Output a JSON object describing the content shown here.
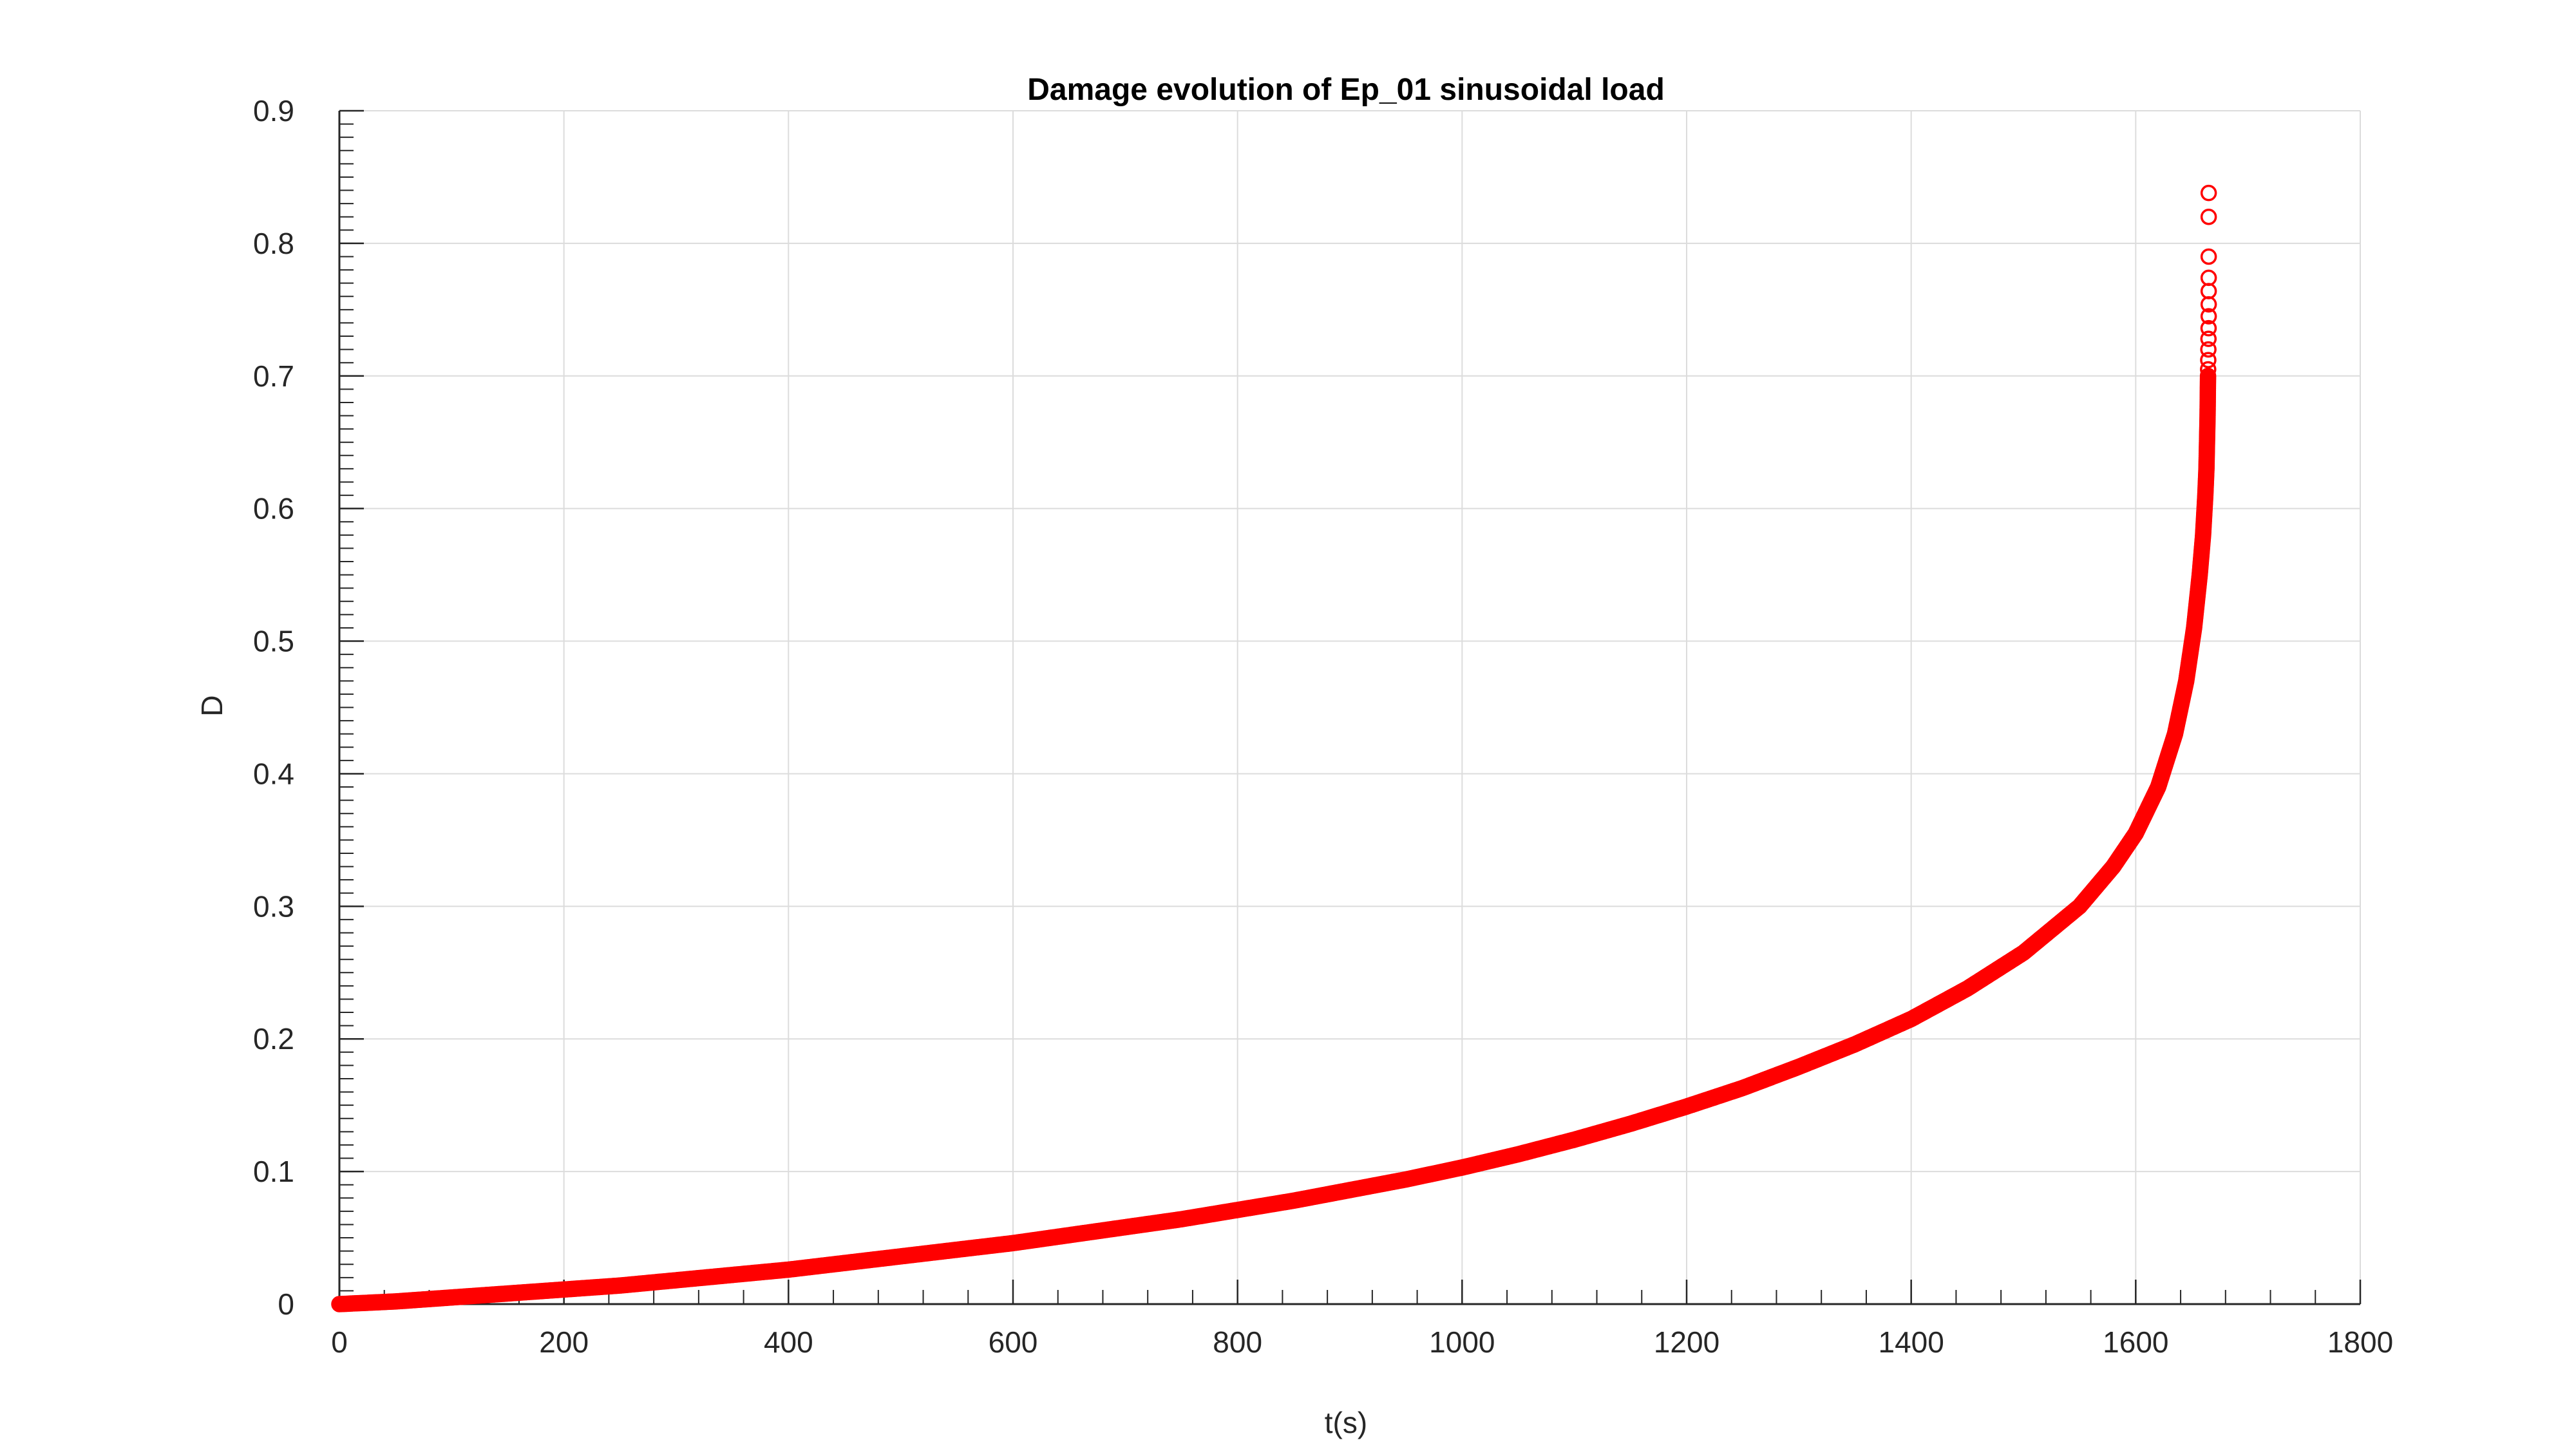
{
  "chart_data": {
    "type": "scatter",
    "title": "Damage evolution of Ep_01 sinusoidal load",
    "xlabel": "t(s)",
    "ylabel": "D",
    "xlim": [
      0,
      1800
    ],
    "ylim": [
      0,
      0.9
    ],
    "xticks": [
      0,
      200,
      400,
      600,
      800,
      1000,
      1200,
      1400,
      1600,
      1800
    ],
    "yticks": [
      0,
      0.1,
      0.2,
      0.3,
      0.4,
      0.5,
      0.6,
      0.7,
      0.8,
      0.9
    ],
    "xtick_labels": [
      "0",
      "200",
      "400",
      "600",
      "800",
      "1000",
      "1200",
      "1400",
      "1600",
      "1800"
    ],
    "ytick_labels": [
      "0",
      "0.1",
      "0.2",
      "0.3",
      "0.4",
      "0.5",
      "0.6",
      "0.7",
      "0.8",
      "0.9"
    ],
    "grid": true,
    "marker": "circle-open",
    "color": "#ff0000",
    "series": [
      {
        "x": [
          0,
          50,
          100,
          150,
          200,
          250,
          300,
          350,
          400,
          450,
          500,
          550,
          600,
          650,
          700,
          750,
          800,
          850,
          900,
          950,
          1000,
          1050,
          1100,
          1150,
          1200,
          1250,
          1300,
          1350,
          1400,
          1450,
          1500,
          1550,
          1580,
          1600,
          1620,
          1635,
          1645,
          1652,
          1657,
          1660,
          1662,
          1663,
          1663.5,
          1664,
          1664.2,
          1664.4,
          1664.5,
          1664.6,
          1664.7,
          1664.8,
          1664.9,
          1665,
          1665,
          1665,
          1665,
          1665,
          1665,
          1665
        ],
        "y": [
          0,
          0.002,
          0.005,
          0.008,
          0.011,
          0.014,
          0.018,
          0.022,
          0.026,
          0.031,
          0.036,
          0.041,
          0.046,
          0.052,
          0.058,
          0.064,
          0.071,
          0.078,
          0.086,
          0.094,
          0.103,
          0.113,
          0.124,
          0.136,
          0.149,
          0.163,
          0.179,
          0.196,
          0.215,
          0.238,
          0.265,
          0.3,
          0.33,
          0.355,
          0.39,
          0.43,
          0.47,
          0.51,
          0.55,
          0.58,
          0.61,
          0.63,
          0.65,
          0.67,
          0.685,
          0.7,
          0.705,
          0.712,
          0.72,
          0.728,
          0.736,
          0.745,
          0.754,
          0.764,
          0.774,
          0.79,
          0.82,
          0.838
        ]
      }
    ]
  }
}
